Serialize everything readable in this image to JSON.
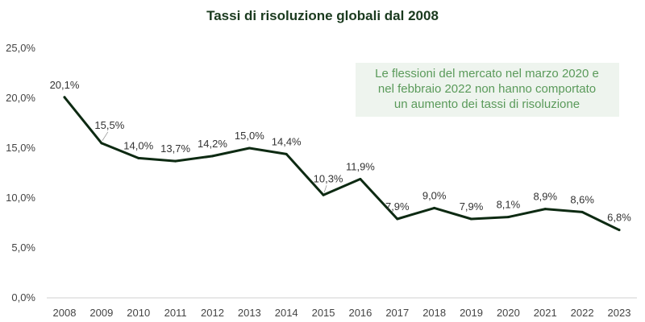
{
  "colors": {
    "line": "#0d2a12",
    "annotation_bg": "#eef4ee",
    "annotation_text": "#5a9a5a",
    "title": "#1a3a1e"
  },
  "chart_data": {
    "type": "line",
    "title": "Tassi di risoluzione globali dal 2008",
    "xlabel": "",
    "ylabel": "",
    "ylim": [
      0,
      25
    ],
    "yticks": [
      "0,0%",
      "5,0%",
      "10,0%",
      "15,0%",
      "20,0%",
      "25,0%"
    ],
    "grid": false,
    "categories": [
      "2008",
      "2009",
      "2010",
      "2011",
      "2012",
      "2013",
      "2014",
      "2015",
      "2016",
      "2017",
      "2018",
      "2019",
      "2020",
      "2021",
      "2022",
      "2023"
    ],
    "series": [
      {
        "values": [
          20.1,
          15.5,
          14.0,
          13.7,
          14.2,
          15.0,
          14.4,
          10.3,
          11.9,
          7.9,
          9.0,
          7.9,
          8.1,
          8.9,
          8.6,
          6.8
        ],
        "labels": [
          "20,1%",
          "15,5%",
          "14,0%",
          "13,7%",
          "14,2%",
          "15,0%",
          "14,4%",
          "10,3%",
          "11,9%",
          "7,9%",
          "9,0%",
          "7,9%",
          "8,1%",
          "8,9%",
          "8,6%",
          "6,8%"
        ]
      }
    ],
    "annotation": [
      "Le flessioni del mercato nel marzo 2020 e",
      "nel febbraio 2022 non hanno comportato",
      "un aumento dei tassi di risoluzione"
    ]
  }
}
